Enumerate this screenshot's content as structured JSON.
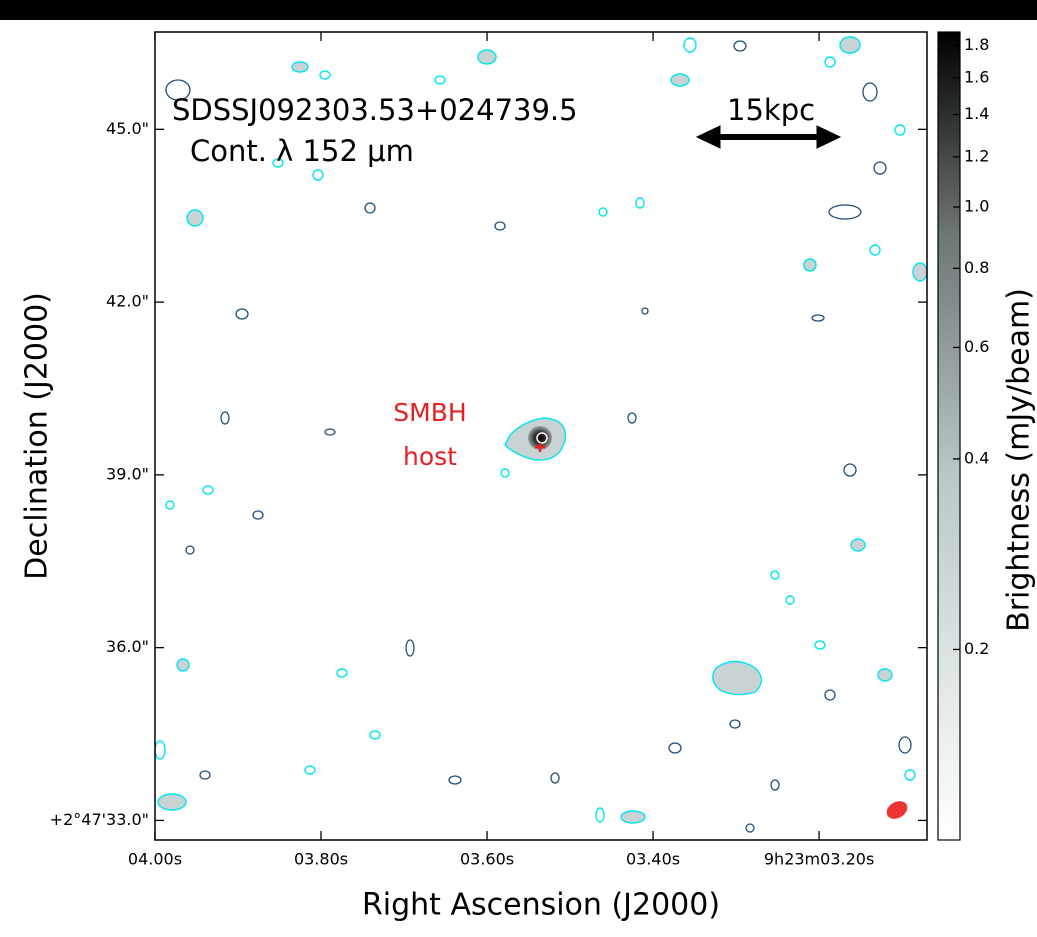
{
  "chart_data": {
    "type": "image",
    "annotations": [
      "SDSSJ092303.53+024739.5",
      "Cont. λ 152 μm",
      "15kpc",
      "SMBH",
      "host"
    ],
    "x_label": "Right Ascension (J2000)",
    "y_label": "Declination (J2000)",
    "colorbar_label": "Brightness (mJy/beam)",
    "xlim": [
      4.0,
      3.07
    ],
    "xticks": [
      {
        "value": 4.0,
        "label": "04.00s"
      },
      {
        "value": 3.8,
        "label": "03.80s"
      },
      {
        "value": 3.6,
        "label": "03.60s"
      },
      {
        "value": 3.4,
        "label": "03.40s"
      },
      {
        "value": 3.2,
        "label": "9h23m03.20s"
      }
    ],
    "ylim": [
      32.66,
      46.69
    ],
    "yticks": [
      {
        "value": 33,
        "label": "+2°47'33.0\""
      },
      {
        "value": 36,
        "label": "36.0\""
      },
      {
        "value": 39,
        "label": "39.0\""
      },
      {
        "value": 42,
        "label": "42.0\""
      },
      {
        "value": 45,
        "label": "45.0\""
      }
    ],
    "clim": [
      0.1,
      1.89
    ],
    "colorbar_log": true,
    "cticks": [
      0.2,
      0.4,
      0.6,
      0.8,
      {
        "value": 1,
        "label": "1.0"
      },
      1.2,
      1.4,
      1.6,
      1.8
    ]
  }
}
